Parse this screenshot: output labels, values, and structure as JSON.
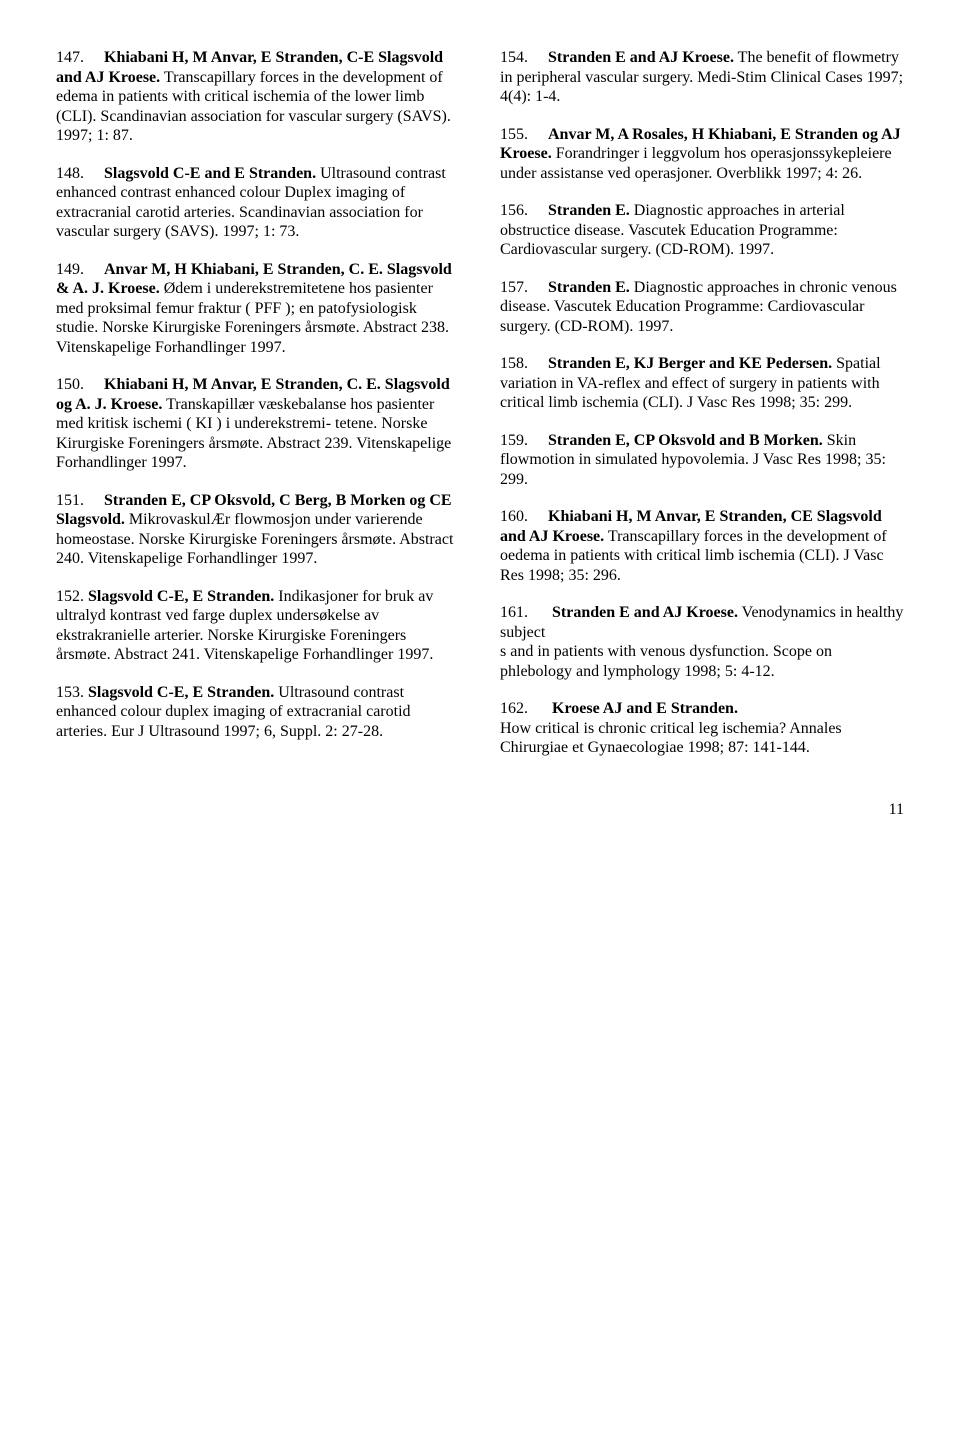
{
  "page_number": "11",
  "left": [
    {
      "num": "147.",
      "gap": "     ",
      "authors": "Khiabani H, M Anvar, E Stranden, C-E Slagsvold and AJ Kroese.",
      "body": " Transcapillary forces in the development of edema in patients with critical ischemia of the lower limb (CLI). Scandinavian association for vascular surgery (SAVS). 1997; 1: 87."
    },
    {
      "num": "148.",
      "gap": "     ",
      "authors": "Slagsvold C-E and E Stranden.",
      "body": " Ultrasound contrast enhanced contrast enhanced colour Duplex imaging of extracranial carotid arteries. Scandinavian association for vascular surgery (SAVS). 1997; 1: 73."
    },
    {
      "num": "149.",
      "gap": "     ",
      "authors": "Anvar M, H Khiabani, E Stranden, C. E. Slagsvold & A. J. Kroese.",
      "body": " Ødem i underekstremitetene hos pasienter med proksimal femur fraktur ( PFF ); en patofysiologisk studie. Norske Kirurgiske Foreningers årsmøte. Abstract 238. Vitenskapelige Forhandlinger 1997."
    },
    {
      "num": "150.",
      "gap": "     ",
      "authors": "Khiabani H, M Anvar, E Stranden, C. E. Slagsvold og A. J. Kroese.",
      "body": " Transkapillær væskebalanse hos pasienter med kritisk ischemi ( KI ) i underekstremi- tetene. Norske Kirurgiske Foreningers årsmøte. Abstract 239. Vitenskapelige Forhandlinger 1997."
    },
    {
      "num": "151.",
      "gap": "     ",
      "authors": "Stranden E, CP Oksvold, C Berg, B Morken og CE Slagsvold.",
      "body": " MikrovaskulÆr flowmosjon under varierende homeostase. Norske Kirurgiske Foreningers årsmøte. Abstract 240. Vitenskapelige Forhandlinger 1997."
    },
    {
      "num": "152.",
      "gap": " ",
      "authors": "Slagsvold C-E, E Stranden.",
      "body": " Indikasjoner for bruk av ultralyd kontrast ved farge duplex undersøkelse av ekstrakranielle arterier. Norske Kirurgiske Foreningers årsmøte. Abstract 241. Vitenskapelige Forhandlinger 1997."
    },
    {
      "num": "153.",
      "gap": " ",
      "authors": "Slagsvold C-E, E Stranden.",
      "body": " Ultrasound contrast enhanced colour duplex imaging of extracranial carotid  arteries. Eur J Ultrasound 1997; 6, Suppl. 2: 27-28."
    }
  ],
  "right": [
    {
      "num": "154.",
      "gap": "     ",
      "authors": "Stranden E and AJ Kroese.",
      "body": " The benefit of flowmetry in peripheral vascular surgery. Medi-Stim Clinical Cases 1997; 4(4): 1-4."
    },
    {
      "num": "155.",
      "gap": "     ",
      "authors": "Anvar M, A Rosales, H Khiabani, E Stranden og AJ Kroese.",
      "body": " Forandringer i leggvolum hos operasjonssykepleiere under assistanse ved operasjoner. Overblikk 1997; 4: 26."
    },
    {
      "num": "156.",
      "gap": "     ",
      "authors": "Stranden E.",
      "body": "   Diagnostic approaches in arterial obstructice disease. Vascutek Education Programme: Cardiovascular surgery. (CD-ROM). 1997."
    },
    {
      "num": "157.",
      "gap": "     ",
      "authors": "Stranden E.",
      "body": " Diagnostic approaches in chronic venous disease. Vascutek Education Programme: Cardiovascular surgery. (CD-ROM). 1997."
    },
    {
      "num": "158.",
      "gap": "     ",
      "authors": "Stranden E, KJ Berger and KE Pedersen.",
      "body": " Spatial variation in VA-reflex and effect of surgery in patients with critical limb ischemia (CLI). J Vasc Res 1998; 35: 299."
    },
    {
      "num": "159.",
      "gap": "     ",
      "authors": "Stranden E, CP Oksvold and B Morken.",
      "body": "  Skin flowmotion in simulated hypovolemia. J Vasc Res 1998; 35: 299."
    },
    {
      "num": "160.",
      "gap": "     ",
      "authors": "Khiabani H, M Anvar, E Stranden, CE Slagsvold and AJ Kroese.",
      "body": " Transcapillary forces in the development of oedema in patients with critical limb ischemia (CLI). J Vasc Res 1998; 35: 296."
    },
    {
      "num": "161.",
      "gap": "      ",
      "authors": "Stranden E and AJ Kroese.",
      "body": " Venodynamics in healthy subject\ns and in patients with venous dysfunction. Scope on phlebology and lymphology 1998; 5: 4-12."
    },
    {
      "num": "162.",
      "gap": "      ",
      "authors": "Kroese AJ and E Stranden.",
      "body": "\nHow critical is  chronic critical leg ischemia? Annales Chirurgiae et Gynaecologiae 1998; 87: 141-144."
    }
  ]
}
